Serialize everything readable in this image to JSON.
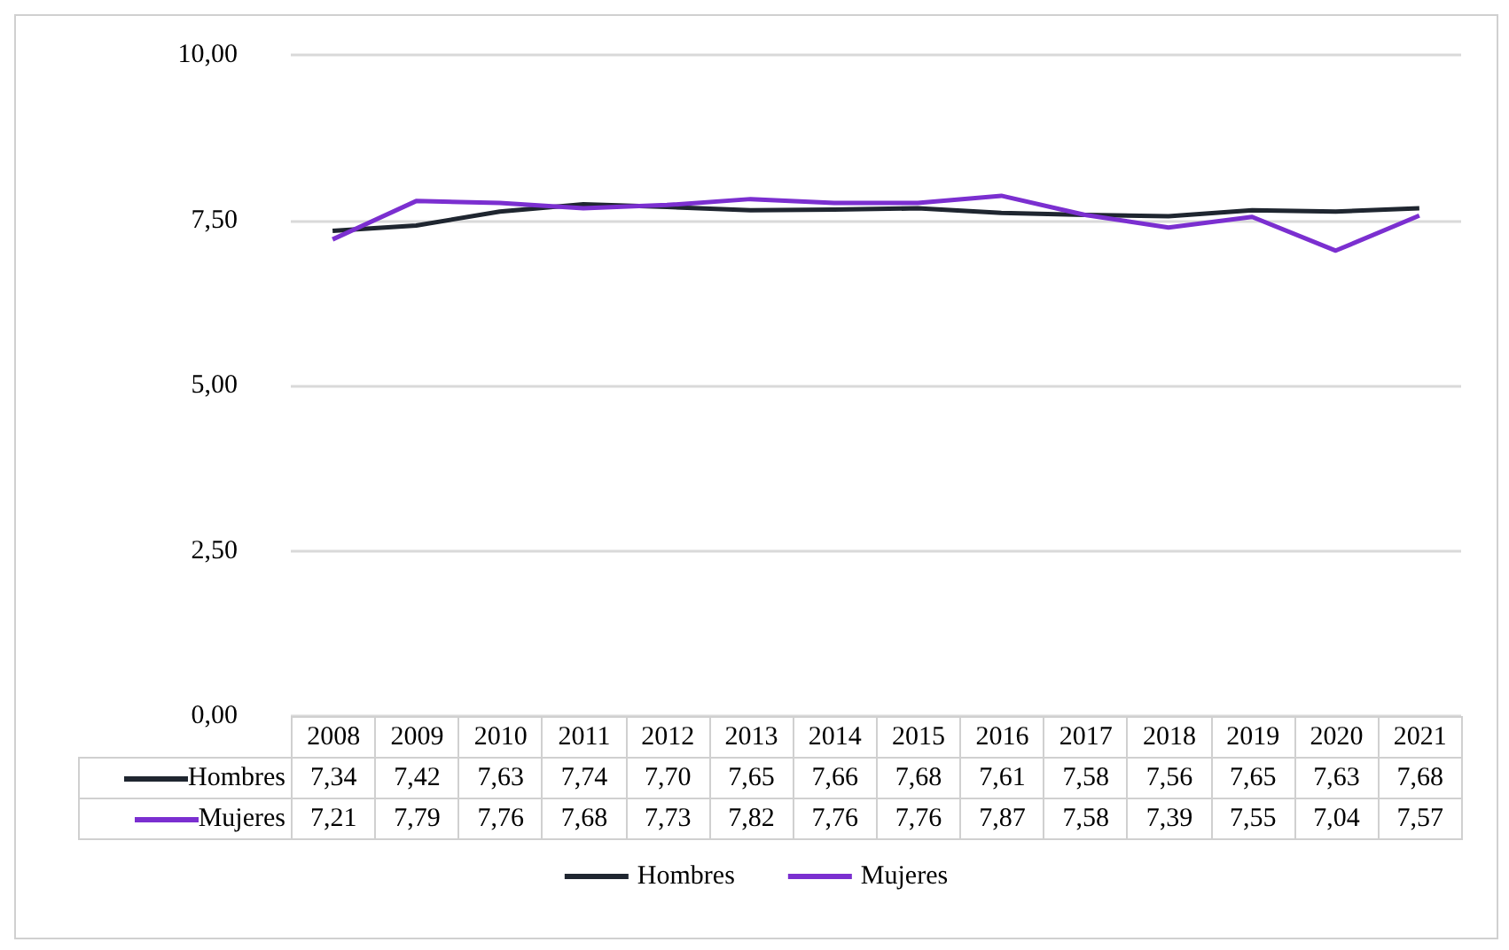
{
  "chart_data": {
    "type": "line",
    "categories": [
      "2008",
      "2009",
      "2010",
      "2011",
      "2012",
      "2013",
      "2014",
      "2015",
      "2016",
      "2017",
      "2018",
      "2019",
      "2020",
      "2021"
    ],
    "series": [
      {
        "name": "Hombres",
        "color": "#1f2630",
        "values": [
          7.34,
          7.42,
          7.63,
          7.74,
          7.7,
          7.65,
          7.66,
          7.68,
          7.61,
          7.58,
          7.56,
          7.65,
          7.63,
          7.68
        ],
        "value_labels": [
          "7,34",
          "7,42",
          "7,63",
          "7,74",
          "7,70",
          "7,65",
          "7,66",
          "7,68",
          "7,61",
          "7,58",
          "7,56",
          "7,65",
          "7,63",
          "7,68"
        ]
      },
      {
        "name": "Mujeres",
        "color": "#7b2fd0",
        "values": [
          7.21,
          7.79,
          7.76,
          7.68,
          7.73,
          7.82,
          7.76,
          7.76,
          7.87,
          7.58,
          7.39,
          7.55,
          7.04,
          7.57
        ],
        "value_labels": [
          "7,21",
          "7,79",
          "7,76",
          "7,68",
          "7,73",
          "7,82",
          "7,76",
          "7,76",
          "7,87",
          "7,58",
          "7,39",
          "7,55",
          "7,04",
          "7,57"
        ]
      }
    ],
    "ylim": [
      0,
      10
    ],
    "yticks": [
      {
        "value": 0,
        "label": "0,00"
      },
      {
        "value": 2.5,
        "label": "2,50"
      },
      {
        "value": 5,
        "label": "5,00"
      },
      {
        "value": 7.5,
        "label": "7,50"
      },
      {
        "value": 10,
        "label": "10,00"
      }
    ],
    "grid": "y",
    "legend": "bottom",
    "marker": "none"
  }
}
